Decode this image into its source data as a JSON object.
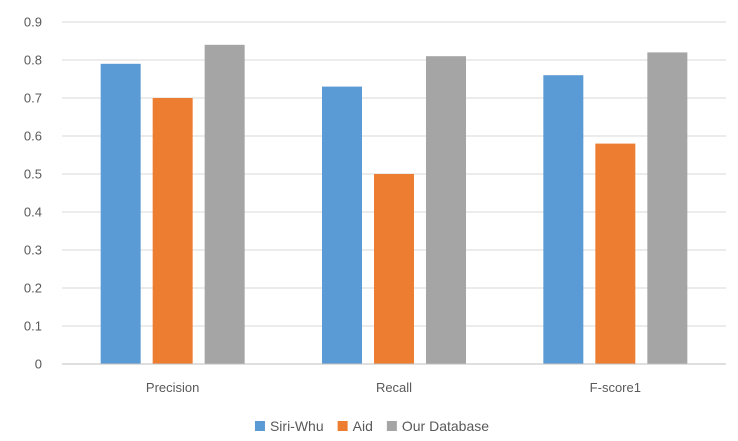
{
  "chart_data": {
    "type": "bar",
    "title": "",
    "xlabel": "",
    "ylabel": "",
    "categories": [
      "Precision",
      "Recall",
      "F-score1"
    ],
    "series": [
      {
        "name": "Siri-Whu",
        "values": [
          0.79,
          0.73,
          0.76
        ],
        "color": "#5B9BD5"
      },
      {
        "name": "Aid",
        "values": [
          0.7,
          0.5,
          0.58
        ],
        "color": "#ED7D31"
      },
      {
        "name": "Our Database",
        "values": [
          0.84,
          0.81,
          0.82
        ],
        "color": "#A5A5A5"
      }
    ],
    "ylim": [
      0,
      0.9
    ],
    "yticks": [
      "0",
      "0.1",
      "0.2",
      "0.3",
      "0.4",
      "0.5",
      "0.6",
      "0.7",
      "0.8",
      "0.9"
    ],
    "grid": true,
    "legend_position": "bottom"
  }
}
